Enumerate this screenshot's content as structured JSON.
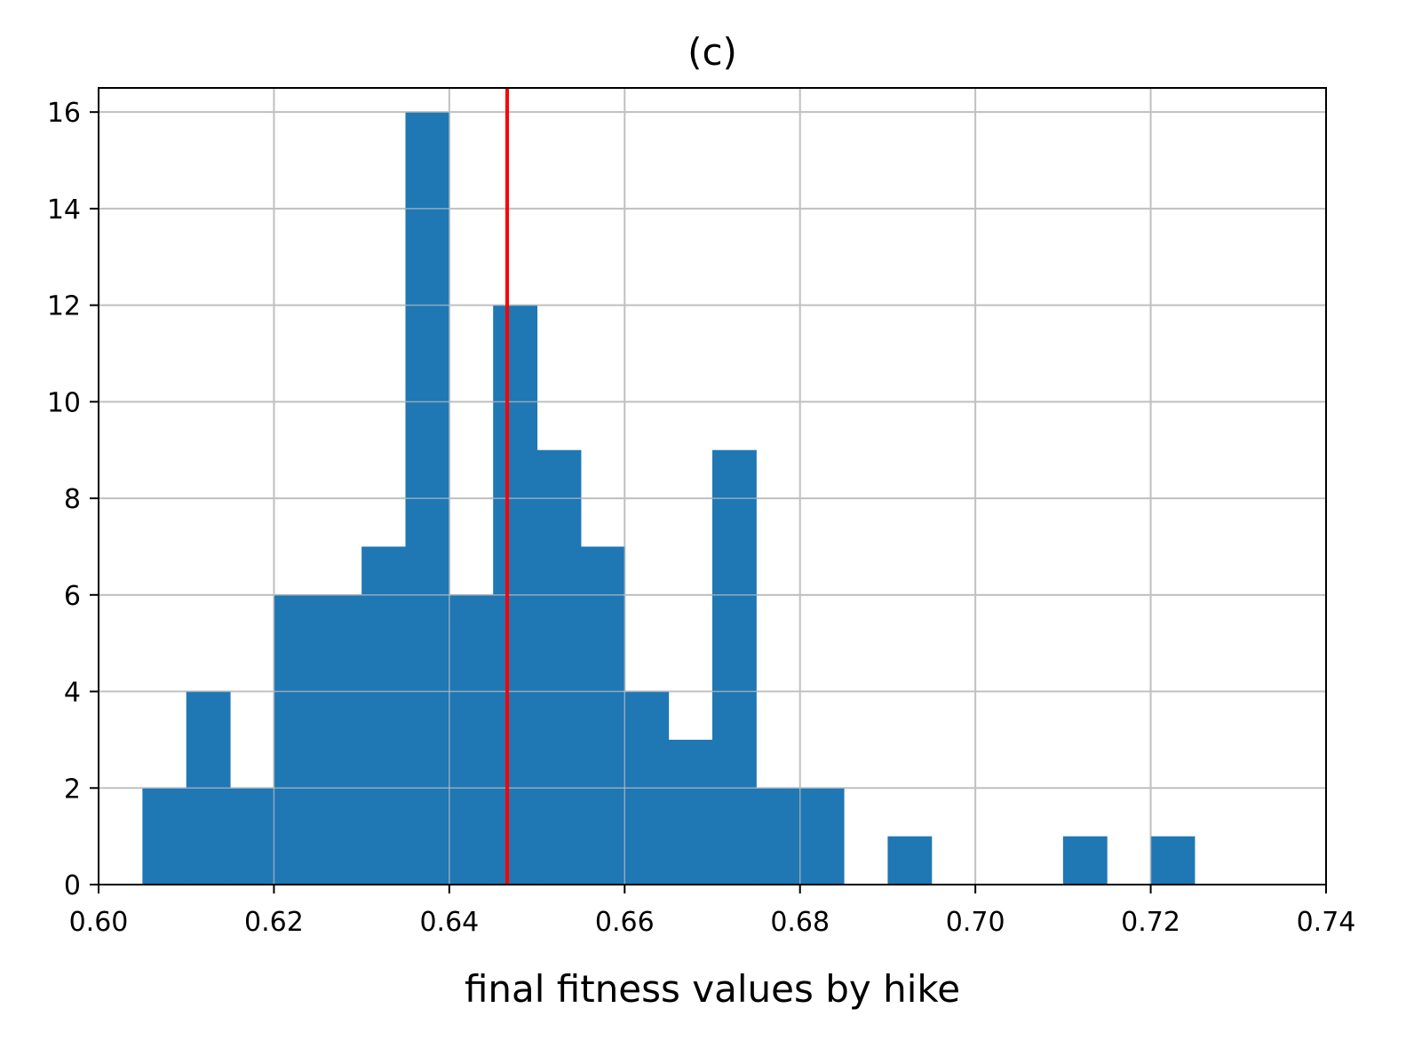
{
  "chart_data": {
    "type": "bar",
    "title": "(c)",
    "xlabel": "final fitness values by hike",
    "ylabel": "",
    "xlim": [
      0.6,
      0.74
    ],
    "ylim": [
      0,
      16.5
    ],
    "grid": true,
    "xticks": [
      "0.60",
      "0.62",
      "0.64",
      "0.66",
      "0.68",
      "0.70",
      "0.72",
      "0.74"
    ],
    "yticks": [
      "0",
      "2",
      "4",
      "6",
      "8",
      "10",
      "12",
      "14",
      "16"
    ],
    "bin_width": 0.005,
    "bins": [
      {
        "x": 0.605,
        "count": 2
      },
      {
        "x": 0.61,
        "count": 4
      },
      {
        "x": 0.615,
        "count": 2
      },
      {
        "x": 0.62,
        "count": 6
      },
      {
        "x": 0.625,
        "count": 6
      },
      {
        "x": 0.63,
        "count": 7
      },
      {
        "x": 0.635,
        "count": 16
      },
      {
        "x": 0.64,
        "count": 6
      },
      {
        "x": 0.645,
        "count": 12
      },
      {
        "x": 0.65,
        "count": 9
      },
      {
        "x": 0.655,
        "count": 7
      },
      {
        "x": 0.66,
        "count": 4
      },
      {
        "x": 0.665,
        "count": 3
      },
      {
        "x": 0.67,
        "count": 9
      },
      {
        "x": 0.675,
        "count": 2
      },
      {
        "x": 0.68,
        "count": 2
      },
      {
        "x": 0.69,
        "count": 1
      },
      {
        "x": 0.71,
        "count": 1
      },
      {
        "x": 0.72,
        "count": 1
      }
    ],
    "reference_line": {
      "x": 0.6466,
      "color": "#ff0000"
    },
    "bar_color": "#1f77b4",
    "grid_color": "#c0c0c0"
  }
}
